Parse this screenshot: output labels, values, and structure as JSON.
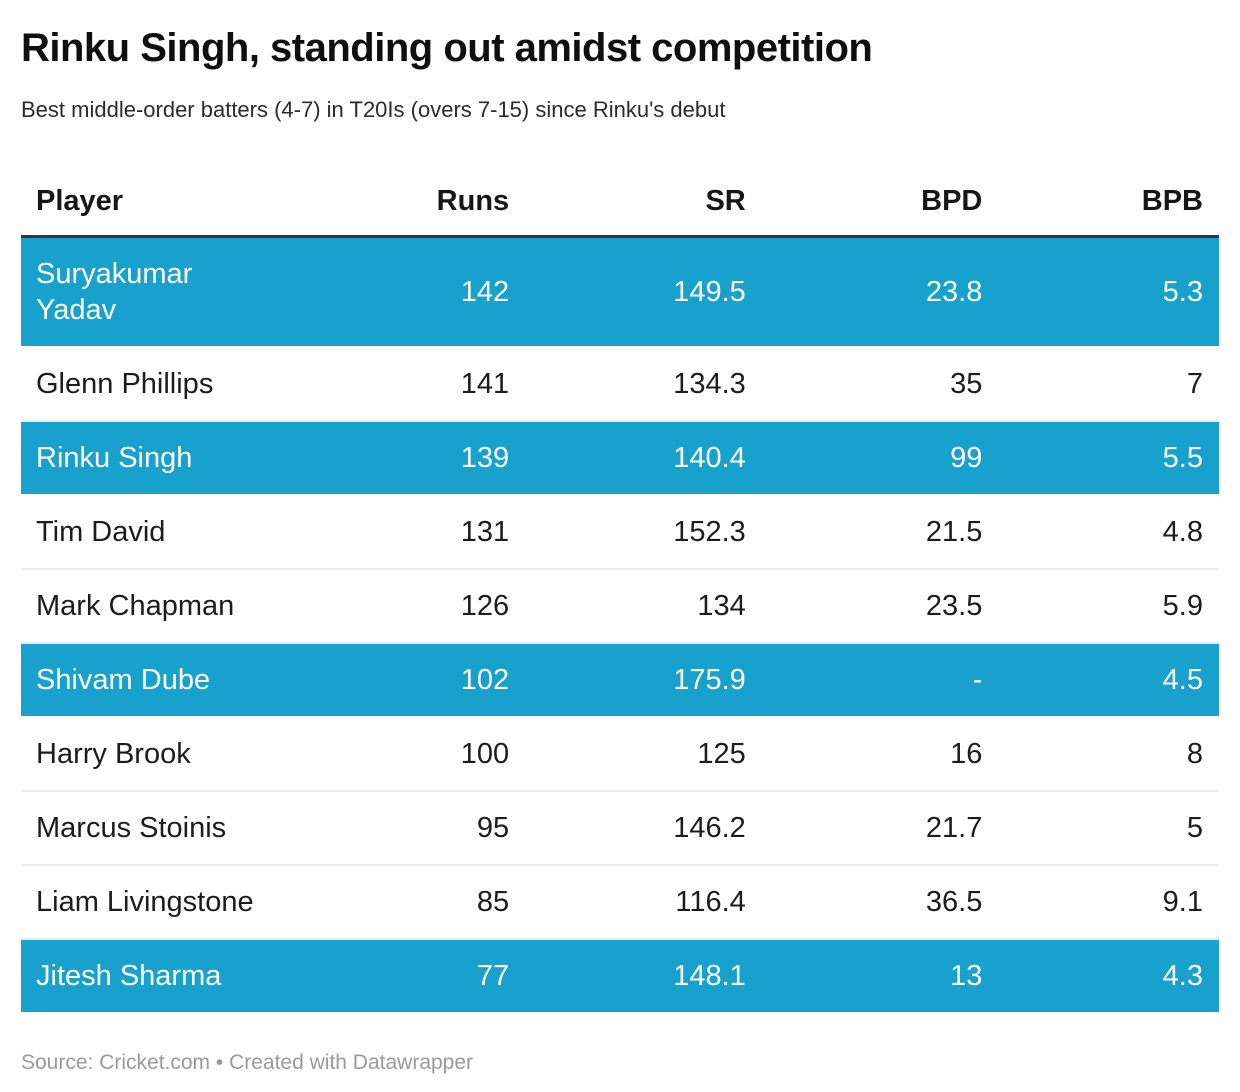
{
  "chart_data": {
    "type": "table",
    "title": "Rinku Singh, standing out amidst competition",
    "subtitle": "Best middle-order batters (4-7) in T20Is (overs 7-15) since Rinku's debut",
    "columns": [
      "Player",
      "Runs",
      "SR",
      "BPD",
      "BPB"
    ],
    "rows": [
      {
        "player": "Suryakumar Yadav",
        "runs": "142",
        "sr": "149.5",
        "bpd": "23.8",
        "bpb": "5.3",
        "highlight": true
      },
      {
        "player": "Glenn Phillips",
        "runs": "141",
        "sr": "134.3",
        "bpd": "35",
        "bpb": "7",
        "highlight": false
      },
      {
        "player": "Rinku Singh",
        "runs": "139",
        "sr": "140.4",
        "bpd": "99",
        "bpb": "5.5",
        "highlight": true
      },
      {
        "player": "Tim David",
        "runs": "131",
        "sr": "152.3",
        "bpd": "21.5",
        "bpb": "4.8",
        "highlight": false
      },
      {
        "player": "Mark Chapman",
        "runs": "126",
        "sr": "134",
        "bpd": "23.5",
        "bpb": "5.9",
        "highlight": false
      },
      {
        "player": "Shivam Dube",
        "runs": "102",
        "sr": "175.9",
        "bpd": "-",
        "bpb": "4.5",
        "highlight": true
      },
      {
        "player": "Harry Brook",
        "runs": "100",
        "sr": "125",
        "bpd": "16",
        "bpb": "8",
        "highlight": false
      },
      {
        "player": "Marcus Stoinis",
        "runs": "95",
        "sr": "146.2",
        "bpd": "21.7",
        "bpb": "5",
        "highlight": false
      },
      {
        "player": "Liam Livingstone",
        "runs": "85",
        "sr": "116.4",
        "bpd": "36.5",
        "bpb": "9.1",
        "highlight": false
      },
      {
        "player": "Jitesh Sharma",
        "runs": "77",
        "sr": "148.1",
        "bpd": "13",
        "bpb": "4.3",
        "highlight": true
      }
    ],
    "highlighted_players": [
      "Suryakumar Yadav",
      "Rinku Singh",
      "Shivam Dube",
      "Jitesh Sharma"
    ],
    "legend_position": "none",
    "grid": "horizontal-row-separators"
  },
  "footer": {
    "text": "Source: Cricket.com • Created with Datawrapper"
  },
  "colors": {
    "highlight_row_bg": "#18a1cd",
    "highlight_row_text": "#ffffff",
    "header_rule": "#36363b",
    "row_separator": "#ececec",
    "title_text": "#0f0f0f",
    "footer_text": "#9a9a9a"
  }
}
